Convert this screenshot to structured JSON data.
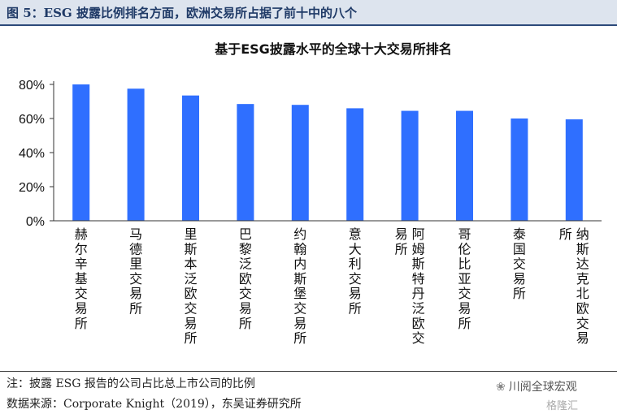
{
  "figure": {
    "title": "图 5：ESG 披露比例排名方面，欧洲交易所占据了前十中的八个"
  },
  "chart_data": {
    "type": "bar",
    "title": "基于ESG披露水平的全球十大交易所排名",
    "categories": [
      "赫尔辛基交易所",
      "马德里交易所",
      "里斯本泛欧交易所",
      "巴黎泛欧交易所",
      "约翰内斯堡交易所",
      "意大利交易所",
      "阿姆斯特丹泛欧交易所",
      "哥伦比亚交易所",
      "泰国交易所",
      "纳斯达克北欧交易所"
    ],
    "values": [
      80,
      77.5,
      73.5,
      68.5,
      68,
      66,
      64.5,
      64.5,
      60,
      59.5
    ],
    "ylim": [
      0,
      80
    ],
    "yticks": [
      0,
      20,
      40,
      60,
      80
    ],
    "ytick_format": "percent",
    "bar_color": "#2f6fff",
    "grid": false,
    "legend": "none"
  },
  "footer": {
    "note": "注：披露 ESG 报告的公司占比总上市公司的比例",
    "source": "数据来源：Corporate Knight（2019），东吴证券研究所"
  },
  "watermark": {
    "icon": "wechat-icon",
    "text": "川阅全球宏观",
    "text2": "格隆汇"
  }
}
